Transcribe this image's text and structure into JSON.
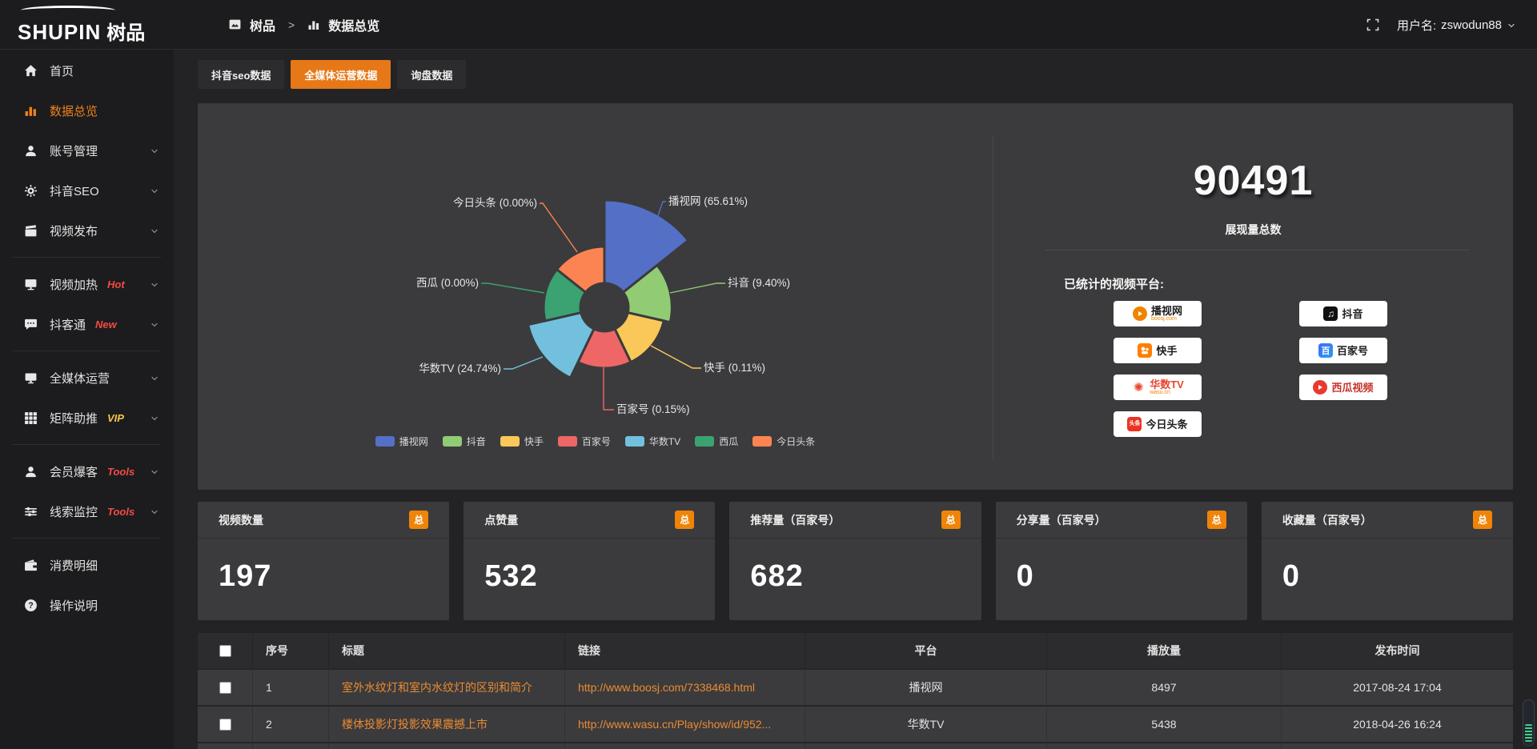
{
  "topbar": {
    "logo": {
      "brand": "SHUPIN",
      "brand_cn": "树品"
    },
    "breadcrumb": {
      "root": "树品",
      "separator": ">",
      "current": "数据总览"
    },
    "user": {
      "label": "用户名:",
      "name": "zswodun88"
    }
  },
  "sidebar": {
    "items": [
      {
        "label": "首页",
        "icon": "home"
      },
      {
        "label": "数据总览",
        "icon": "bars",
        "active": true
      },
      {
        "label": "账号管理",
        "icon": "user",
        "expandable": true
      },
      {
        "label": "抖音SEO",
        "icon": "gear",
        "expandable": true
      },
      {
        "label": "视频发布",
        "icon": "video",
        "expandable": true,
        "divider_after": true
      },
      {
        "label": "视频加热",
        "icon": "screen",
        "tag": "Hot",
        "tag_color": "#f34b45",
        "expandable": true
      },
      {
        "label": "抖客通",
        "icon": "chat",
        "tag": "New",
        "tag_color": "#f34b45",
        "expandable": true,
        "divider_after": true
      },
      {
        "label": "全媒体运营",
        "icon": "monitor",
        "expandable": true
      },
      {
        "label": "矩阵助推",
        "icon": "grid",
        "tag": "VIP",
        "tag_color": "#f7c54a",
        "expandable": true,
        "divider_after": true
      },
      {
        "label": "会员爆客",
        "icon": "person",
        "tag": "Tools",
        "tag_color": "#f34b45",
        "expandable": true
      },
      {
        "label": "线索监控",
        "icon": "sliders",
        "tag": "Tools",
        "tag_color": "#f34b45",
        "expandable": true,
        "divider_after": true
      },
      {
        "label": "消费明细",
        "icon": "wallet"
      },
      {
        "label": "操作说明",
        "icon": "help"
      }
    ]
  },
  "tabs": [
    {
      "label": "抖音seo数据",
      "active": false
    },
    {
      "label": "全媒体运营数据",
      "active": true
    },
    {
      "label": "询盘数据",
      "active": false
    }
  ],
  "chart_data": {
    "type": "pie",
    "variant": "nightingale-rose",
    "legend_position": "bottom",
    "series": [
      {
        "name": "播视网",
        "percent": 65.61,
        "label": "播视网 (65.61%)",
        "color": "#5470c6"
      },
      {
        "name": "抖音",
        "percent": 9.4,
        "label": "抖音 (9.40%)",
        "color": "#91cc75"
      },
      {
        "name": "快手",
        "percent": 0.11,
        "label": "快手 (0.11%)",
        "color": "#fac858"
      },
      {
        "name": "百家号",
        "percent": 0.15,
        "label": "百家号 (0.15%)",
        "color": "#ee6666"
      },
      {
        "name": "华数TV",
        "percent": 24.74,
        "label": "华数TV (24.74%)",
        "color": "#73c0de"
      },
      {
        "name": "西瓜",
        "percent": 0.0,
        "label": "西瓜 (0.00%)",
        "color": "#3ba272"
      },
      {
        "name": "今日头条",
        "percent": 0.0,
        "label": "今日头条 (0.00%)",
        "color": "#fc8452"
      }
    ],
    "legend": [
      "播视网",
      "抖音",
      "快手",
      "百家号",
      "华数TV",
      "西瓜",
      "今日头条"
    ]
  },
  "summary": {
    "total_value": "90491",
    "total_label": "展现量总数",
    "platforms_title": "已统计的视频平台:",
    "platforms": [
      {
        "name": "播视网",
        "sub": "boosj.com",
        "style": "boosj"
      },
      {
        "name": "抖音",
        "style": "douyin"
      },
      {
        "name": "快手",
        "style": "kuaishou"
      },
      {
        "name": "百家号",
        "style": "baijia"
      },
      {
        "name": "华数TV",
        "sub": "wasu.cn",
        "style": "wasu"
      },
      {
        "name": "西瓜视频",
        "style": "xigua"
      },
      {
        "name": "今日头条",
        "logo_text": "头条",
        "style": "toutiao"
      }
    ]
  },
  "stats_cards": [
    {
      "label": "视频数量",
      "badge": "总",
      "value": "197"
    },
    {
      "label": "点赞量",
      "badge": "总",
      "value": "532"
    },
    {
      "label": "推荐量（百家号）",
      "badge": "总",
      "value": "682"
    },
    {
      "label": "分享量（百家号）",
      "badge": "总",
      "value": "0"
    },
    {
      "label": "收藏量（百家号）",
      "badge": "总",
      "value": "0"
    }
  ],
  "table": {
    "headers": {
      "num": "序号",
      "title": "标题",
      "link": "链接",
      "platform": "平台",
      "plays": "播放量",
      "time": "发布时间"
    },
    "rows": [
      {
        "num": "1",
        "title": "室外水纹灯和室内水纹灯的区别和简介",
        "link": "http://www.boosj.com/7338468.html",
        "platform": "播视网",
        "plays": "8497",
        "time": "2017-08-24 17:04"
      },
      {
        "num": "2",
        "title": "楼体投影灯投影效果震撼上市",
        "link": "http://www.wasu.cn/Play/show/id/952...",
        "platform": "华数TV",
        "plays": "5438",
        "time": "2018-04-26 16:24"
      }
    ]
  },
  "colors": {
    "accent_orange": "#e67817",
    "link_orange": "#ec8b33",
    "badge_orange": "#ef8408",
    "panel_bg": "#3b3b3d",
    "hot_red": "#f34b45",
    "vip_yellow": "#f7c54a"
  }
}
